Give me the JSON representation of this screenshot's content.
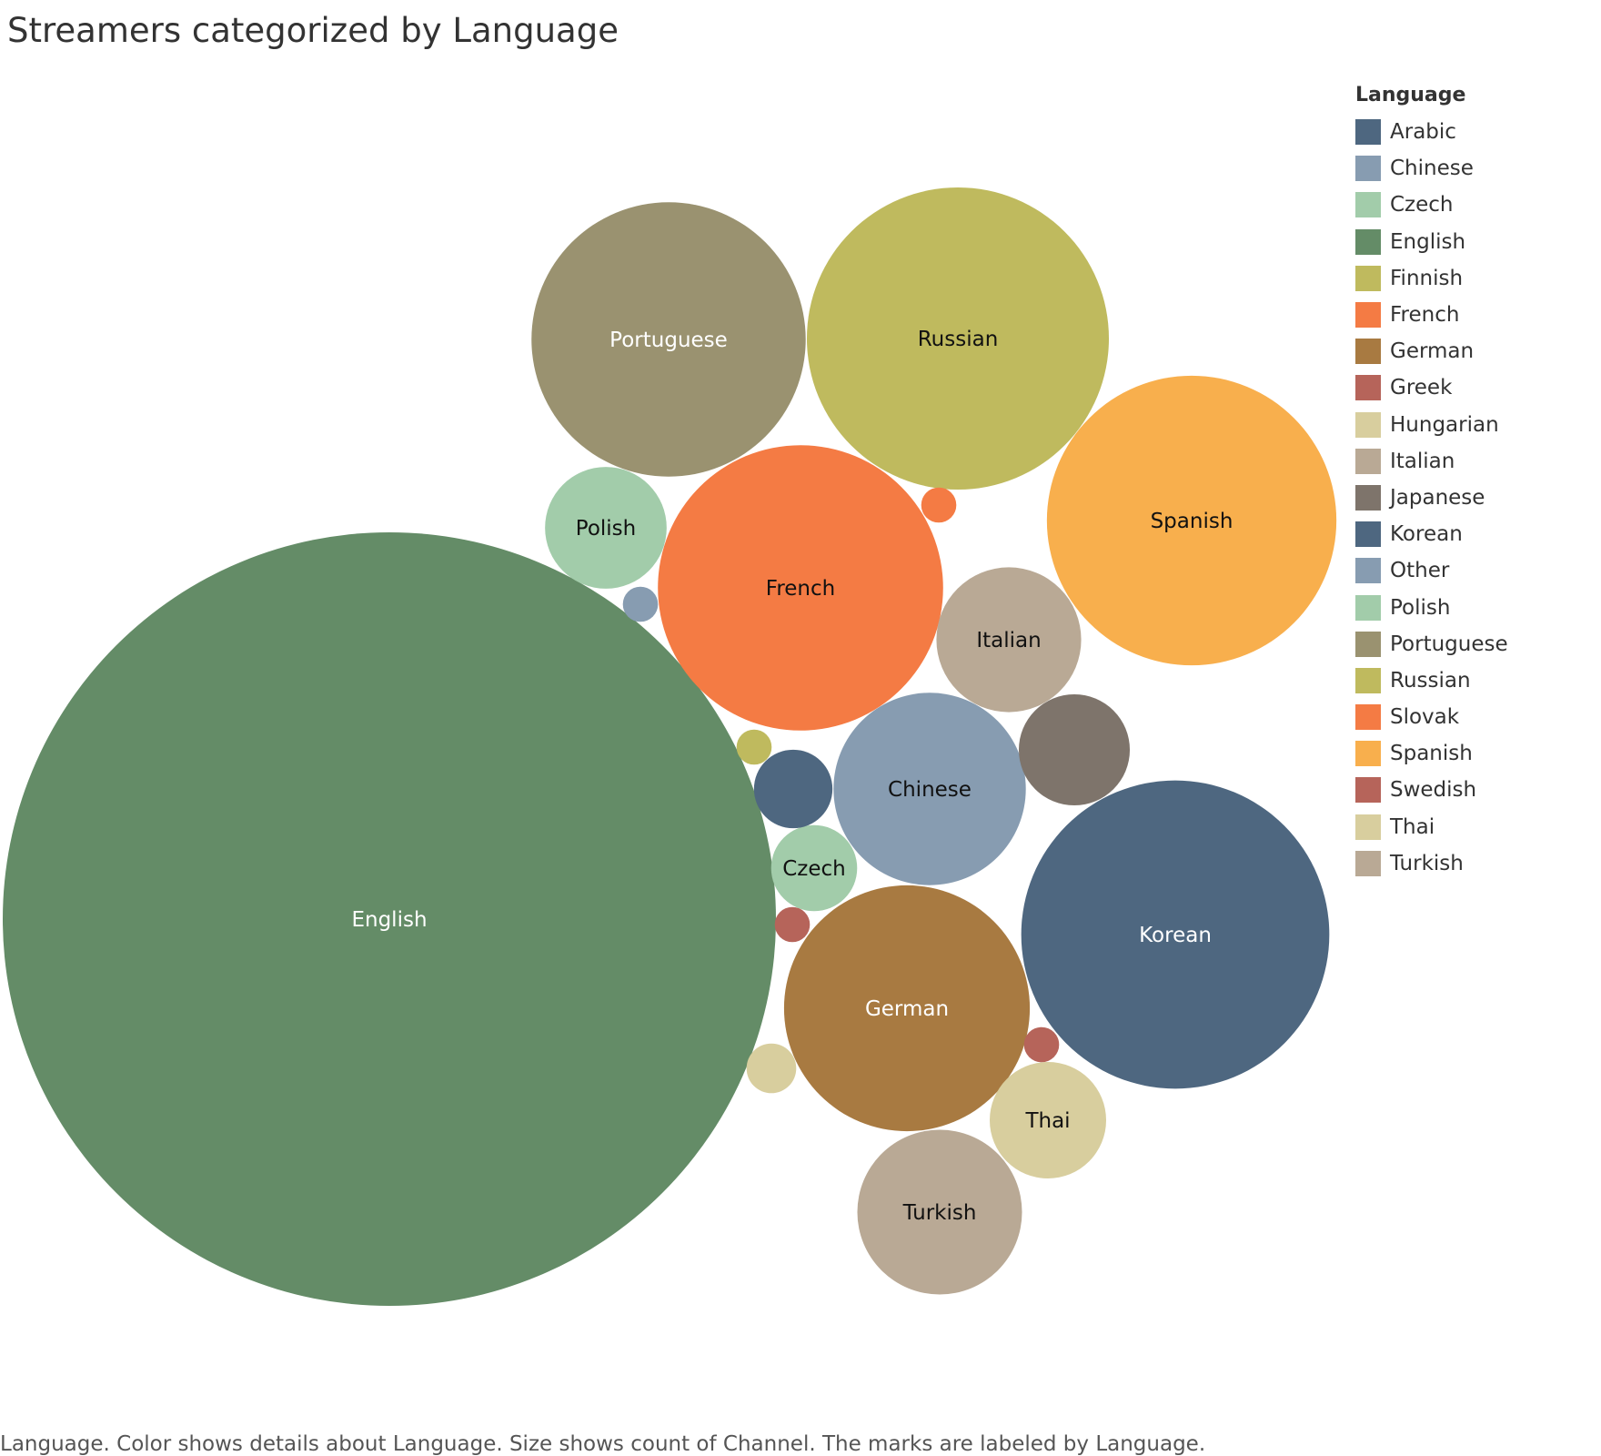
{
  "chart_data": {
    "type": "bubble",
    "title": "Streamers categorized by Language",
    "size_measure": "count of Channel",
    "legend": {
      "title": "Language",
      "position": "right",
      "entries": [
        {
          "label": "Arabic",
          "color": "#4e6780"
        },
        {
          "label": "Chinese",
          "color": "#879cb1"
        },
        {
          "label": "Czech",
          "color": "#a2ccaa"
        },
        {
          "label": "English",
          "color": "#648c67"
        },
        {
          "label": "Finnish",
          "color": "#bfba5e"
        },
        {
          "label": "French",
          "color": "#f47b44"
        },
        {
          "label": "German",
          "color": "#a87a41"
        },
        {
          "label": "Greek",
          "color": "#b6645a"
        },
        {
          "label": "Hungarian",
          "color": "#d8ce9e"
        },
        {
          "label": "Italian",
          "color": "#b9a995"
        },
        {
          "label": "Japanese",
          "color": "#7e746b"
        },
        {
          "label": "Korean",
          "color": "#4e6780"
        },
        {
          "label": "Other",
          "color": "#879cb1"
        },
        {
          "label": "Polish",
          "color": "#a2ccaa"
        },
        {
          "label": "Portuguese",
          "color": "#9a9270"
        },
        {
          "label": "Russian",
          "color": "#bfba5e"
        },
        {
          "label": "Slovak",
          "color": "#f47b44"
        },
        {
          "label": "Spanish",
          "color": "#f8af4d"
        },
        {
          "label": "Swedish",
          "color": "#b6645a"
        },
        {
          "label": "Thai",
          "color": "#d8ce9e"
        },
        {
          "label": "Turkish",
          "color": "#b9a995"
        }
      ]
    },
    "bubbles": [
      {
        "language": "English",
        "value": 485,
        "label": "English",
        "label_color": "#ffffff"
      },
      {
        "language": "Korean",
        "value": 77,
        "label": "Korean",
        "label_color": "#ffffff"
      },
      {
        "language": "Russian",
        "value": 74,
        "label": "Russian",
        "label_color": "#111111"
      },
      {
        "language": "Spanish",
        "value": 68,
        "label": "Spanish",
        "label_color": "#111111"
      },
      {
        "language": "French",
        "value": 66,
        "label": "French",
        "label_color": "#111111"
      },
      {
        "language": "Portuguese",
        "value": 61,
        "label": "Portuguese",
        "label_color": "#ffffff"
      },
      {
        "language": "German",
        "value": 49,
        "label": "German",
        "label_color": "#ffffff"
      },
      {
        "language": "Chinese",
        "value": 30,
        "label": "Chinese",
        "label_color": "#111111"
      },
      {
        "language": "Turkish",
        "value": 22,
        "label": "Turkish",
        "label_color": "#111111"
      },
      {
        "language": "Italian",
        "value": 17,
        "label": "Italian",
        "label_color": "#111111"
      },
      {
        "language": "Polish",
        "value": 12,
        "label": "Polish",
        "label_color": "#111111"
      },
      {
        "language": "Thai",
        "value": 11,
        "label": "Thai",
        "label_color": "#111111"
      },
      {
        "language": "Japanese",
        "value": 10,
        "label": "",
        "label_color": "#111111"
      },
      {
        "language": "Czech",
        "value": 6,
        "label": "Czech",
        "label_color": "#111111"
      },
      {
        "language": "Arabic",
        "value": 5,
        "label": "",
        "label_color": "#111111"
      },
      {
        "language": "Hungarian",
        "value": 2,
        "label": "",
        "label_color": "#111111"
      },
      {
        "language": "Swedish",
        "value": 1,
        "label": "",
        "label_color": "#111111"
      },
      {
        "language": "Greek",
        "value": 1,
        "label": "",
        "label_color": "#111111"
      },
      {
        "language": "Slovak",
        "value": 1,
        "label": "",
        "label_color": "#111111"
      },
      {
        "language": "Finnish",
        "value": 1,
        "label": "",
        "label_color": "#111111"
      },
      {
        "language": "Other",
        "value": 1,
        "label": "",
        "label_color": "#111111"
      }
    ]
  },
  "caption": "Language.  Color shows details about Language.  Size shows count of Channel.  The marks are labeled by Language."
}
